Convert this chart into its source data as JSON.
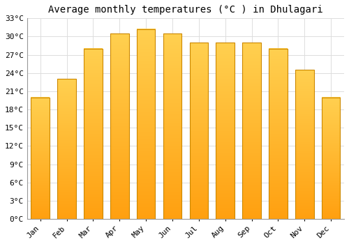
{
  "title": "Average monthly temperatures (°C ) in Dhulagari",
  "months": [
    "Jan",
    "Feb",
    "Mar",
    "Apr",
    "May",
    "Jun",
    "Jul",
    "Aug",
    "Sep",
    "Oct",
    "Nov",
    "Dec"
  ],
  "values": [
    20.0,
    23.0,
    28.0,
    30.5,
    31.2,
    30.5,
    29.0,
    29.0,
    29.0,
    28.0,
    24.5,
    20.0
  ],
  "bar_color_top": "#FFD050",
  "bar_color_bottom": "#FFA010",
  "bar_edge_color": "#CC8800",
  "background_color": "#FFFFFF",
  "grid_color": "#DDDDDD",
  "ylim": [
    0,
    33
  ],
  "yticks": [
    0,
    3,
    6,
    9,
    12,
    15,
    18,
    21,
    24,
    27,
    30,
    33
  ],
  "title_fontsize": 10,
  "tick_fontsize": 8,
  "font_family": "monospace",
  "bar_width": 0.7
}
